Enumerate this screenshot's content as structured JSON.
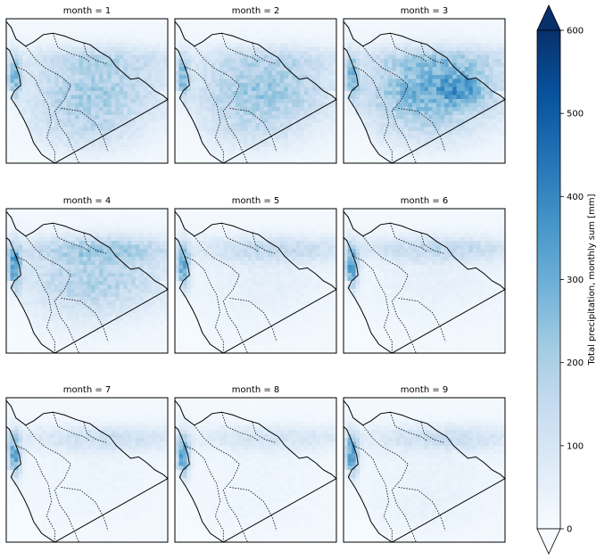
{
  "chart_data": {
    "type": "heatmap",
    "variable_label": "Total precipitation, monthly sum [mm]",
    "colorbar": {
      "ticks": [
        "0",
        "100",
        "200",
        "300",
        "400",
        "500",
        "600"
      ],
      "range": [
        0,
        600
      ],
      "extend": "both",
      "cmap": "Blues",
      "colors": [
        "#f7fbff",
        "#deebf7",
        "#c6dbef",
        "#9ecae1",
        "#6baed6",
        "#4292c6",
        "#2171b5",
        "#08519c",
        "#08306b"
      ]
    },
    "panels": [
      {
        "title": "month = 1"
      },
      {
        "title": "month = 2"
      },
      {
        "title": "month = 3"
      },
      {
        "title": "month = 4"
      },
      {
        "title": "month = 5"
      },
      {
        "title": "month = 6"
      },
      {
        "title": "month = 7"
      },
      {
        "title": "month = 8"
      },
      {
        "title": "month = 9"
      }
    ]
  }
}
